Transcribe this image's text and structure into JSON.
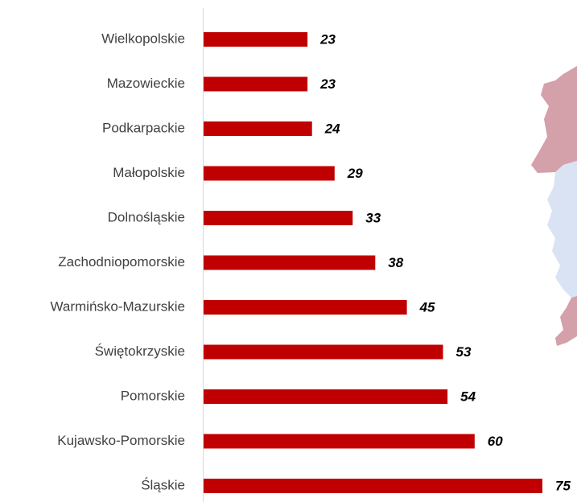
{
  "chart_data": {
    "type": "bar",
    "orientation": "horizontal",
    "categories": [
      "Wielkopolskie",
      "Mazowieckie",
      "Podkarpackie",
      "Małopolskie",
      "Dolnośląskie",
      "Zachodniopomorskie",
      "Warmińsko-Mazurskie",
      "Świętokrzyskie",
      "Pomorskie",
      "Kujawsko-Pomorskie",
      "Śląskie"
    ],
    "values": [
      23,
      23,
      24,
      29,
      33,
      38,
      45,
      53,
      54,
      60,
      75
    ],
    "color": "#c00000"
  }
}
